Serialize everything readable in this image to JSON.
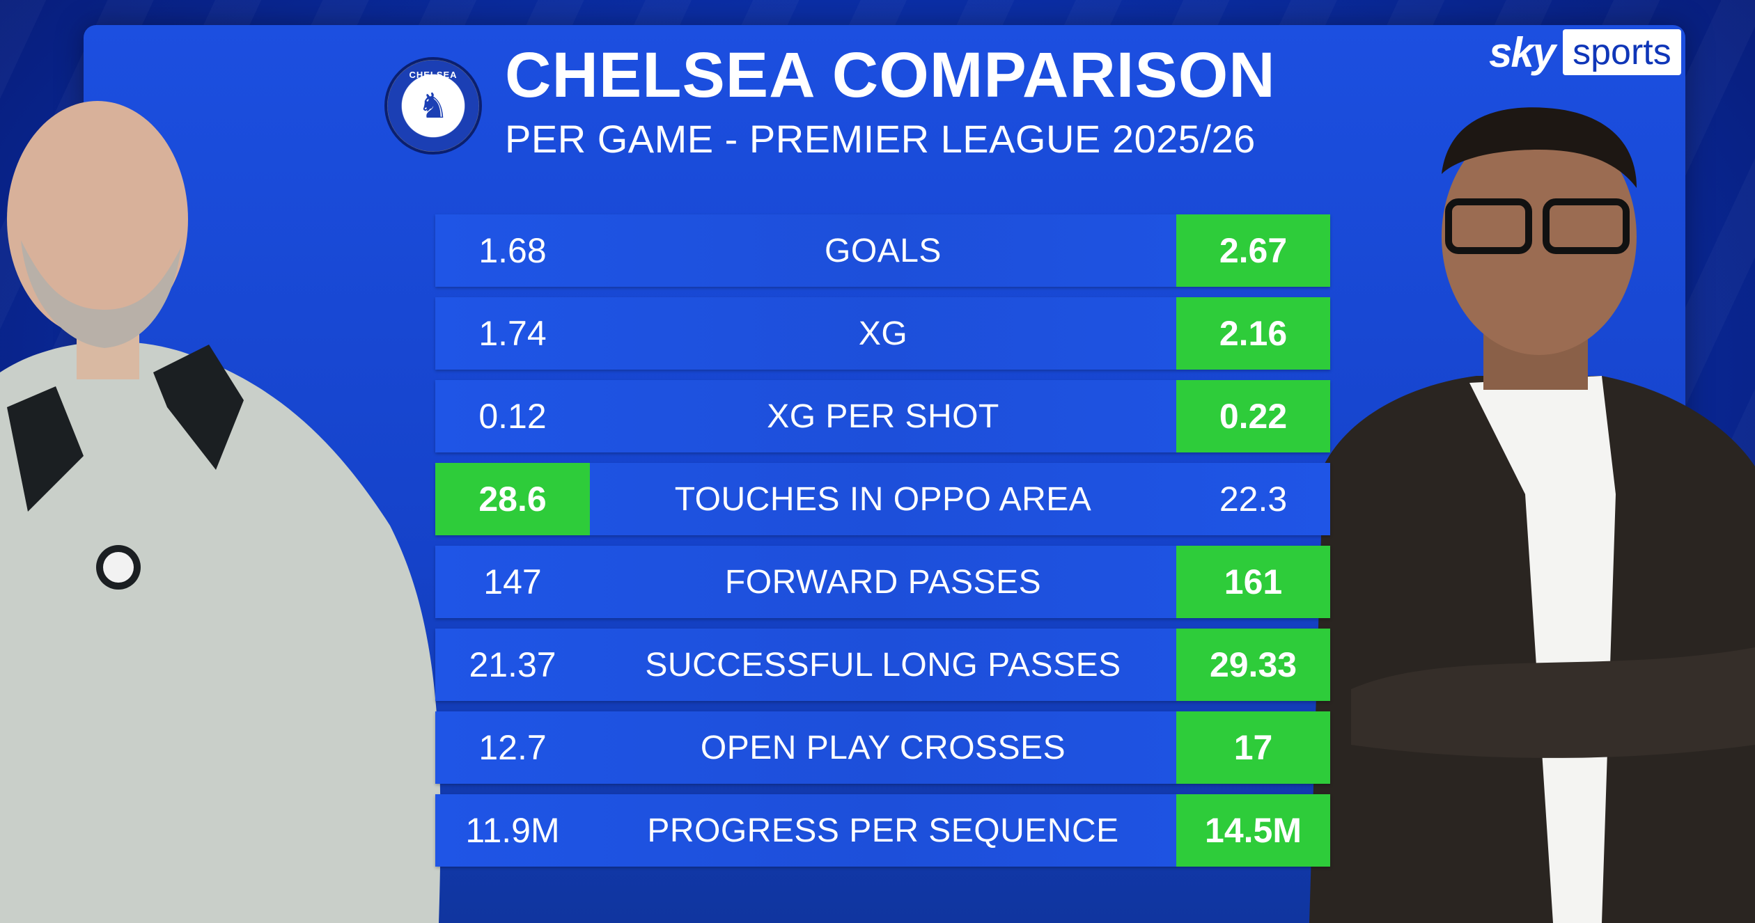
{
  "header": {
    "title": "CHELSEA COMPARISON",
    "subtitle": "PER GAME - PREMIER LEAGUE 2025/26",
    "crest_icon": "chelsea-crest-icon",
    "crest_text": "CHELSEA"
  },
  "brand": {
    "sky": "sky",
    "sports": "sports"
  },
  "rows": [
    {
      "left": "1.68",
      "label": "GOALS",
      "right": "2.67",
      "winner": "right"
    },
    {
      "left": "1.74",
      "label": "XG",
      "right": "2.16",
      "winner": "right"
    },
    {
      "left": "0.12",
      "label": "XG PER SHOT",
      "right": "0.22",
      "winner": "right"
    },
    {
      "left": "28.6",
      "label": "TOUCHES IN OPPO AREA",
      "right": "22.3",
      "winner": "left"
    },
    {
      "left": "147",
      "label": "FORWARD PASSES",
      "right": "161",
      "winner": "right"
    },
    {
      "left": "21.37",
      "label": "SUCCESSFUL LONG PASSES",
      "right": "29.33",
      "winner": "right"
    },
    {
      "left": "12.7",
      "label": "OPEN PLAY CROSSES",
      "right": "17",
      "winner": "right"
    },
    {
      "left": "11.9M",
      "label": "PROGRESS PER SEQUENCE",
      "right": "14.5M",
      "winner": "right"
    }
  ],
  "colors": {
    "highlight": "#2ecc3a",
    "row": "#1f55e6",
    "background": "#0b2fa8"
  }
}
